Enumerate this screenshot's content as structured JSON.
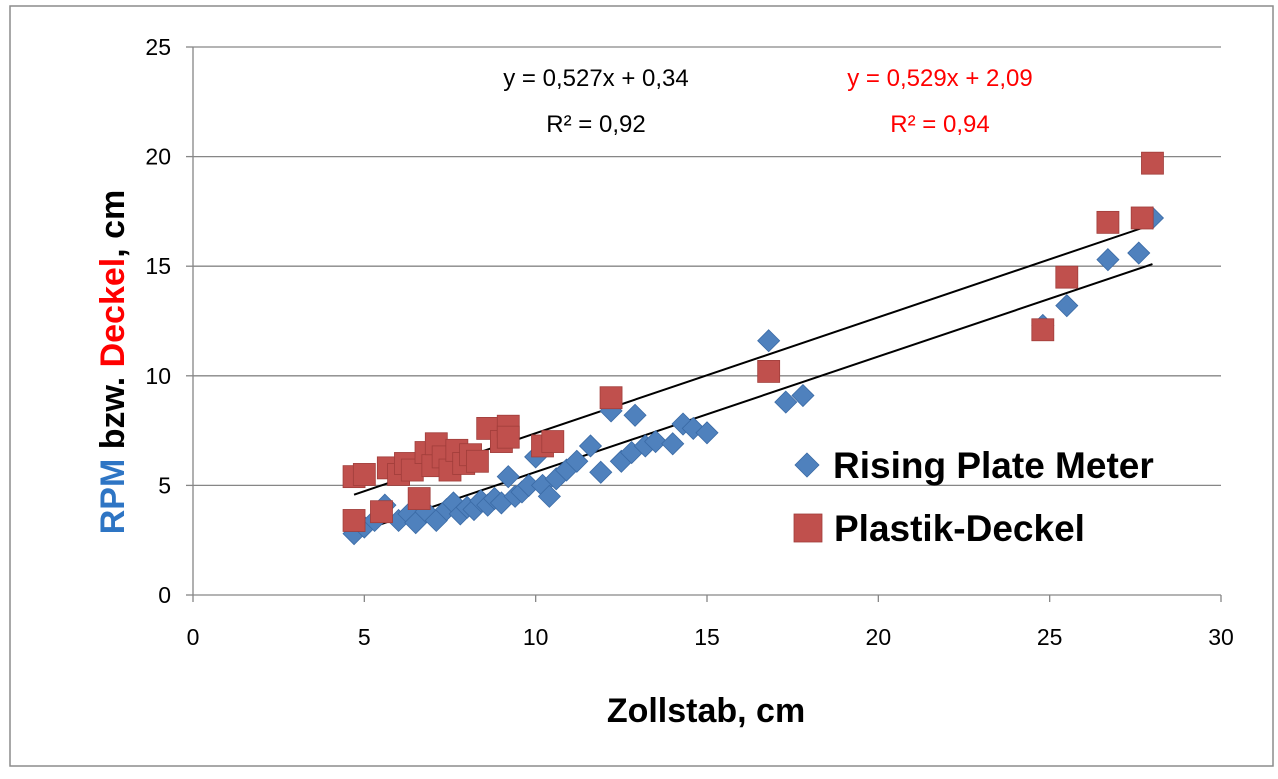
{
  "chart_data": {
    "type": "scatter",
    "xlabel": "Zollstab, cm",
    "ylabel_parts": [
      {
        "text": "RPM",
        "color": "#2E75C4"
      },
      {
        "text": " bzw. ",
        "color": "#000000"
      },
      {
        "text": "Deckel",
        "color": "#FF0000"
      },
      {
        "text": ", cm",
        "color": "#000000"
      }
    ],
    "xlim": [
      0,
      30
    ],
    "ylim": [
      0,
      25
    ],
    "x_ticks": [
      "0",
      "5",
      "10",
      "15",
      "20",
      "25",
      "30"
    ],
    "y_ticks": [
      "0",
      "5",
      "10",
      "15",
      "20",
      "25"
    ],
    "grid": "horizontal",
    "legend_position": "right",
    "series": [
      {
        "name": "Rising Plate Meter",
        "marker": "diamond",
        "color": "#4F81BD",
        "points": [
          [
            4.7,
            2.8
          ],
          [
            5.0,
            3.1
          ],
          [
            5.3,
            3.4
          ],
          [
            5.6,
            4.1
          ],
          [
            6.0,
            3.4
          ],
          [
            6.3,
            3.7
          ],
          [
            6.5,
            3.3
          ],
          [
            6.8,
            3.8
          ],
          [
            7.1,
            3.4
          ],
          [
            7.4,
            3.9
          ],
          [
            7.6,
            4.2
          ],
          [
            7.8,
            3.7
          ],
          [
            8.0,
            4.0
          ],
          [
            8.2,
            3.9
          ],
          [
            8.4,
            4.3
          ],
          [
            8.6,
            4.1
          ],
          [
            8.8,
            4.4
          ],
          [
            9.0,
            4.2
          ],
          [
            9.2,
            5.4
          ],
          [
            9.4,
            4.5
          ],
          [
            9.6,
            4.7
          ],
          [
            9.8,
            5.0
          ],
          [
            10.0,
            6.3
          ],
          [
            10.2,
            5.0
          ],
          [
            10.4,
            4.5
          ],
          [
            10.6,
            5.3
          ],
          [
            10.9,
            5.7
          ],
          [
            11.2,
            6.1
          ],
          [
            11.6,
            6.8
          ],
          [
            11.9,
            5.6
          ],
          [
            12.2,
            8.4
          ],
          [
            12.5,
            6.1
          ],
          [
            12.8,
            6.5
          ],
          [
            12.9,
            8.2
          ],
          [
            13.2,
            6.8
          ],
          [
            13.5,
            7.0
          ],
          [
            14.0,
            6.9
          ],
          [
            14.3,
            7.8
          ],
          [
            14.6,
            7.6
          ],
          [
            15.0,
            7.4
          ],
          [
            16.8,
            11.6
          ],
          [
            17.3,
            8.8
          ],
          [
            17.8,
            9.1
          ],
          [
            24.8,
            12.3
          ],
          [
            25.5,
            13.2
          ],
          [
            26.7,
            15.3
          ],
          [
            27.6,
            15.6
          ],
          [
            28.0,
            17.2
          ]
        ],
        "equation": "y = 0,527x + 0,34",
        "r_squared": "R² = 0,92",
        "label_color": "#000000",
        "trend": {
          "slope": 0.527,
          "intercept": 0.34,
          "x_range": [
            4.7,
            28.0
          ]
        }
      },
      {
        "name": "Plastik-Deckel",
        "marker": "square",
        "color": "#C0504D",
        "points": [
          [
            4.7,
            5.4
          ],
          [
            4.7,
            3.4
          ],
          [
            5.0,
            5.5
          ],
          [
            5.5,
            3.8
          ],
          [
            5.7,
            5.8
          ],
          [
            6.0,
            5.5
          ],
          [
            6.2,
            6.0
          ],
          [
            6.4,
            5.7
          ],
          [
            6.6,
            4.4
          ],
          [
            6.8,
            6.5
          ],
          [
            7.0,
            5.9
          ],
          [
            7.1,
            6.9
          ],
          [
            7.3,
            6.3
          ],
          [
            7.5,
            5.7
          ],
          [
            7.7,
            6.6
          ],
          [
            7.9,
            6.0
          ],
          [
            8.1,
            6.4
          ],
          [
            8.3,
            6.1
          ],
          [
            8.6,
            7.6
          ],
          [
            9.0,
            7.0
          ],
          [
            9.2,
            7.7
          ],
          [
            9.2,
            7.2
          ],
          [
            10.2,
            6.8
          ],
          [
            10.5,
            7.0
          ],
          [
            12.2,
            9.0
          ],
          [
            16.8,
            10.2
          ],
          [
            24.8,
            12.1
          ],
          [
            25.5,
            14.5
          ],
          [
            26.7,
            17.0
          ],
          [
            27.7,
            17.2
          ],
          [
            28.0,
            19.7
          ]
        ],
        "equation": "y = 0,529x + 2,09",
        "r_squared": "R² = 0,94",
        "label_color": "#FF0000",
        "trend": {
          "slope": 0.529,
          "intercept": 2.09,
          "x_range": [
            4.7,
            28.0
          ]
        }
      }
    ]
  }
}
